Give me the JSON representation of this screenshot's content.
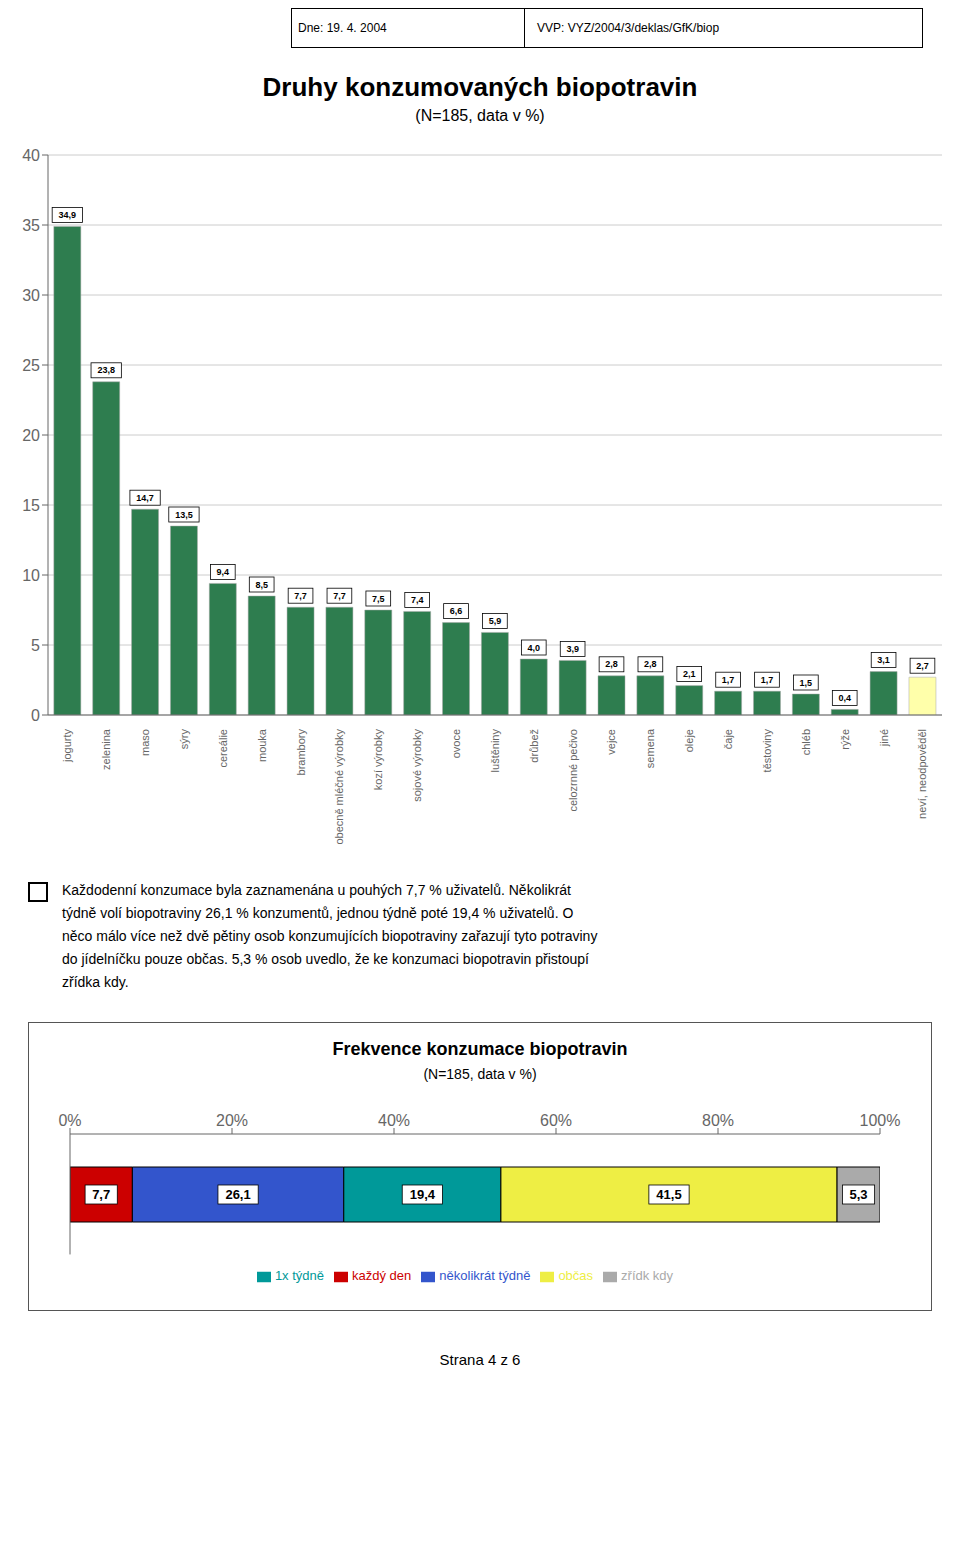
{
  "chart_data": [
    {
      "type": "bar",
      "title": "Druhy konzumovaných biopotravin",
      "subtitle": "(N=185, data v %)",
      "annotations": [
        "Dne: 19. 4. 2004",
        "VVP: VYZ/2004/3/deklas/GfK/biop",
        "Každodenní konzumace byla zaznamenána u pouhých 7,7 % uživatelů. Několikrát",
        "týdně volí biopotraviny 26,1 % konzumentů, jednou týdně poté 19,4 % uživatelů. O",
        "něco málo více než dvě pětiny osob konzumujících biopotraviny zařazují tyto potraviny",
        "do jídelníčku pouze občas. 5,3 % osob uvedlo, že ke konzumaci biopotravin přistoupí",
        "zřídka kdy."
      ],
      "categories": [
        "jogurty",
        "zelenina",
        "maso",
        "sýry",
        "cereálie",
        "mouka",
        "brambory",
        "obecně mléčné výrobky",
        "kozí výrobky",
        "sojové výrobky",
        "ovoce",
        "luštěniny",
        "drůbež",
        "celozrnné pečivo",
        "vejce",
        "semena",
        "oleje",
        "čaje",
        "těstoviny",
        "chléb",
        "rýže",
        "jiné",
        "neví, neodpověděl"
      ],
      "values": [
        34.9,
        23.8,
        14.7,
        13.5,
        9.4,
        8.5,
        7.7,
        7.7,
        7.5,
        7.4,
        6.6,
        5.9,
        4.0,
        3.9,
        2.8,
        2.8,
        2.1,
        1.7,
        1.7,
        1.5,
        0.4,
        3.1,
        2.7
      ],
      "value_labels": [
        "34,9",
        "23,8",
        "14,7",
        "13,5",
        "9,4",
        "8,5",
        "7,7",
        "7,7",
        "7,5",
        "7,4",
        "6,6",
        "5,9",
        "4,0",
        "3,9",
        "2,8",
        "2,8",
        "2,1",
        "1,7",
        "1,7",
        "1,5",
        "0,4",
        "3,1",
        "2,7"
      ],
      "colors": [
        "#2e7d4f",
        "#2e7d4f",
        "#2e7d4f",
        "#2e7d4f",
        "#2e7d4f",
        "#2e7d4f",
        "#2e7d4f",
        "#2e7d4f",
        "#2e7d4f",
        "#2e7d4f",
        "#2e7d4f",
        "#2e7d4f",
        "#2e7d4f",
        "#2e7d4f",
        "#2e7d4f",
        "#2e7d4f",
        "#2e7d4f",
        "#2e7d4f",
        "#2e7d4f",
        "#2e7d4f",
        "#2e7d4f",
        "#2e7d4f",
        "#ffffaa"
      ],
      "ylim": [
        0,
        40
      ],
      "yticks": [
        0,
        5,
        10,
        15,
        20,
        25,
        30,
        35,
        40
      ],
      "grid": true,
      "data_labels": true
    },
    {
      "type": "bar",
      "orientation": "horizontal",
      "stacked": true,
      "title": "Frekvence konzumace biopotravin",
      "subtitle": "(N=185, data v %)",
      "annotations": [
        "Strana 4 z 6"
      ],
      "categories": [
        null
      ],
      "series": [
        {
          "name": "každý den",
          "color": "#cc0000",
          "values": [
            7.7
          ],
          "value_labels": [
            "7,7"
          ]
        },
        {
          "name": "několikrát týdně",
          "color": "#3355cc",
          "values": [
            26.1
          ],
          "value_labels": [
            "26,1"
          ]
        },
        {
          "name": "1x týdně",
          "color": "#009999",
          "values": [
            19.4
          ],
          "value_labels": [
            "19,4"
          ]
        },
        {
          "name": "občas",
          "color": "#eeee44",
          "values": [
            41.5
          ],
          "value_labels": [
            "41,5"
          ]
        },
        {
          "name": "zřídk kdy",
          "color": "#aaaaaa",
          "values": [
            5.3
          ],
          "value_labels": [
            "5,3"
          ]
        }
      ],
      "xlim": [
        0,
        100
      ],
      "xticks": [
        {
          "value": 0,
          "label": "0%"
        },
        {
          "value": 20,
          "label": "20%"
        },
        {
          "value": 40,
          "label": "40%"
        },
        {
          "value": 60,
          "label": "60%"
        },
        {
          "value": 80,
          "label": "80%"
        },
        {
          "value": 100,
          "label": "100%"
        }
      ],
      "grid": false,
      "data_labels": true,
      "legend": "bottom",
      "tick_labels": "x"
    }
  ]
}
